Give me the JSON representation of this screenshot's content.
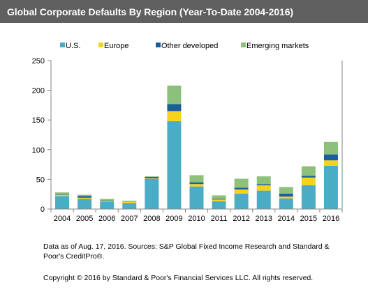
{
  "title": "Global Corporate Defaults By Region (Year-To-Date 2004-2016)",
  "footnotes": {
    "source": "Data as of Aug. 17, 2016. Sources: S&P Global Fixed Income Research and  Standard & Poor's CreditPro®.",
    "copyright": "Copyright © 2016 by Standard & Poor's Financial Services LLC. All rights reserved."
  },
  "chart_data": {
    "type": "bar",
    "stacked": true,
    "title": "Global Corporate Defaults By Region (Year-To-Date 2004-2016)",
    "xlabel": "",
    "ylabel": "",
    "ylim": [
      0,
      250
    ],
    "yticks": [
      0,
      50,
      100,
      150,
      200,
      250
    ],
    "grid": false,
    "legend_position": "top",
    "categories": [
      "2004",
      "2005",
      "2006",
      "2007",
      "2008",
      "2009",
      "2010",
      "2011",
      "2012",
      "2013",
      "2014",
      "2015",
      "2016"
    ],
    "series": [
      {
        "name": "U.S.",
        "color": "#4BACC6",
        "values": [
          22,
          17,
          12,
          10,
          51,
          148,
          38,
          13,
          26,
          31,
          18,
          40,
          73
        ]
      },
      {
        "name": "Europe",
        "color": "#F5D31C",
        "values": [
          2,
          2,
          1,
          2,
          1,
          17,
          4,
          3,
          7,
          9,
          3,
          13,
          9
        ]
      },
      {
        "name": "Other developed",
        "color": "#1B5E9E",
        "values": [
          1,
          3,
          1,
          0,
          2,
          12,
          3,
          1,
          3,
          2,
          5,
          3,
          10
        ]
      },
      {
        "name": "Emerging markets",
        "color": "#8DC07A",
        "values": [
          3,
          2,
          3,
          2,
          1,
          31,
          12,
          6,
          15,
          13,
          11,
          16,
          21
        ]
      }
    ]
  }
}
